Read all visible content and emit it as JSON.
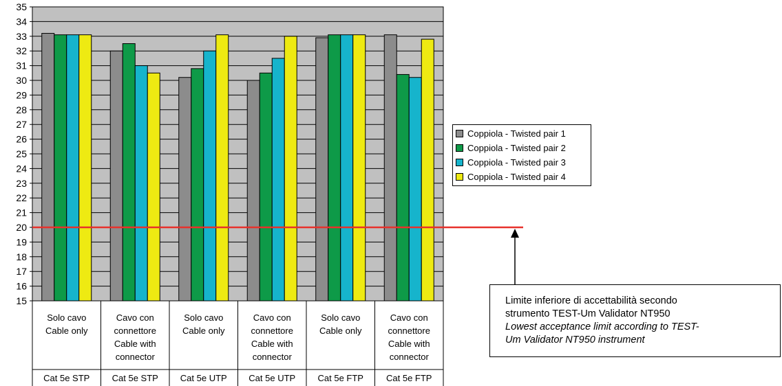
{
  "chart_data": {
    "type": "bar",
    "ylim": [
      15,
      35
    ],
    "yticks": [
      15,
      16,
      17,
      18,
      19,
      20,
      21,
      22,
      23,
      24,
      25,
      26,
      27,
      28,
      29,
      30,
      31,
      32,
      33,
      34,
      35
    ],
    "grid": true,
    "legend_position": "right",
    "categories": [
      {
        "label_lines": [
          "Solo cavo",
          "Cable only"
        ],
        "group": "Cat 5e STP"
      },
      {
        "label_lines": [
          "Cavo con",
          "connettore",
          "Cable with",
          "connector"
        ],
        "group": "Cat 5e STP"
      },
      {
        "label_lines": [
          "Solo cavo",
          "Cable only"
        ],
        "group": "Cat 5e UTP"
      },
      {
        "label_lines": [
          "Cavo con",
          "connettore",
          "Cable with",
          "connector"
        ],
        "group": "Cat 5e UTP"
      },
      {
        "label_lines": [
          "Solo cavo",
          "Cable only"
        ],
        "group": "Cat 5e FTP"
      },
      {
        "label_lines": [
          "Cavo con",
          "connettore",
          "Cable with",
          "connector"
        ],
        "group": "Cat 5e FTP"
      }
    ],
    "series": [
      {
        "name": "Coppiola - Twisted pair 1",
        "color": "#8c8c8c",
        "values": [
          33.2,
          32.0,
          30.2,
          30.0,
          32.9,
          33.1
        ]
      },
      {
        "name": "Coppiola - Twisted pair 2",
        "color": "#0e9a48",
        "values": [
          33.1,
          32.5,
          30.8,
          30.5,
          33.1,
          30.4
        ]
      },
      {
        "name": "Coppiola - Twisted pair 3",
        "color": "#16b4cc",
        "values": [
          33.1,
          31.0,
          32.0,
          31.5,
          33.1,
          30.2
        ]
      },
      {
        "name": "Coppiola - Twisted pair 4",
        "color": "#eeea12",
        "values": [
          33.1,
          30.5,
          33.1,
          33.0,
          33.1,
          32.8
        ]
      }
    ],
    "threshold": {
      "value": 20,
      "color": "#e8312b"
    },
    "plot_background": "#c0c0c0"
  },
  "annotation": {
    "line1": "Limite inferiore di accettabilità secondo",
    "line2": "strumento TEST-Um  Validator NT950",
    "line3": "Lowest acceptance limit according to TEST-",
    "line4": "Um  Validator NT950 instrument"
  }
}
